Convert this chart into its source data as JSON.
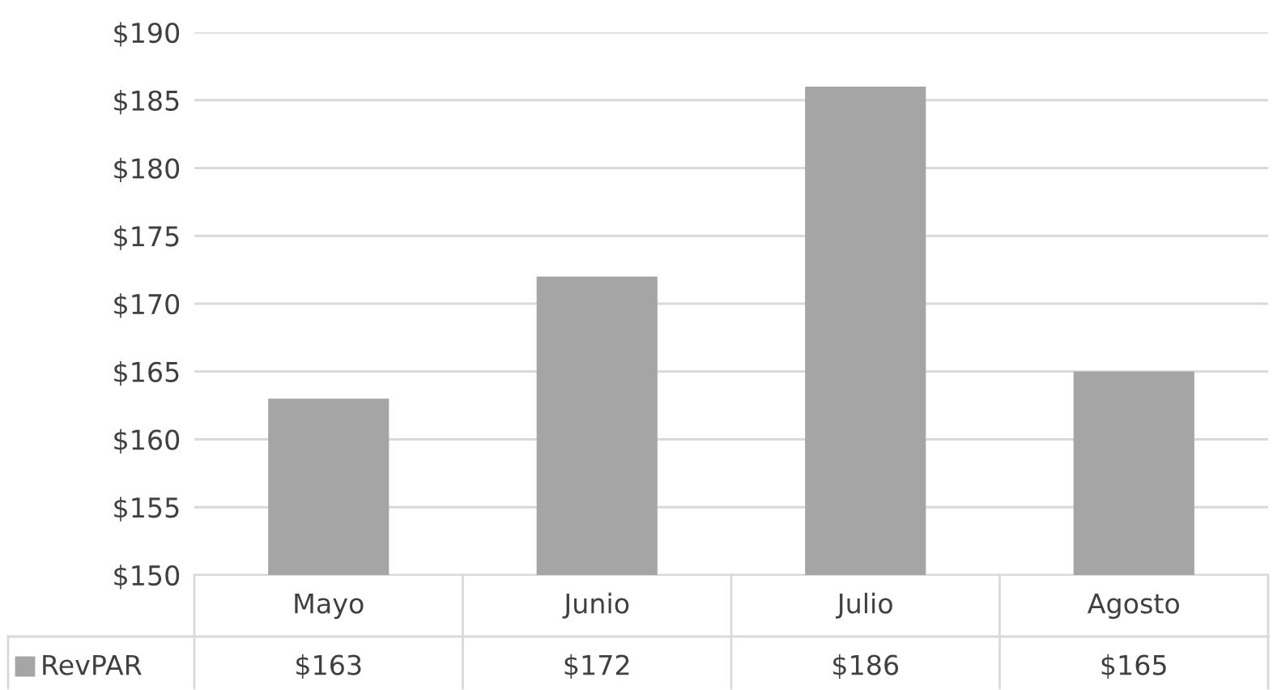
{
  "chart_data": {
    "type": "bar",
    "categories": [
      "Mayo",
      "Junio",
      "Julio",
      "Agosto"
    ],
    "series": [
      {
        "name": "RevPAR",
        "color": "#a5a5a5",
        "values": [
          163,
          172,
          186,
          165
        ],
        "value_labels": [
          "$163",
          "$172",
          "$186",
          "$165"
        ]
      }
    ],
    "ylim": [
      150,
      190
    ],
    "yticks": [
      {
        "value": 150,
        "label": "$150"
      },
      {
        "value": 155,
        "label": "$155"
      },
      {
        "value": 160,
        "label": "$160"
      },
      {
        "value": 165,
        "label": "$165"
      },
      {
        "value": 170,
        "label": "$170"
      },
      {
        "value": 175,
        "label": "$175"
      },
      {
        "value": 180,
        "label": "$180"
      },
      {
        "value": 185,
        "label": "$185"
      },
      {
        "value": 190,
        "label": "$190"
      }
    ],
    "grid": "y"
  }
}
